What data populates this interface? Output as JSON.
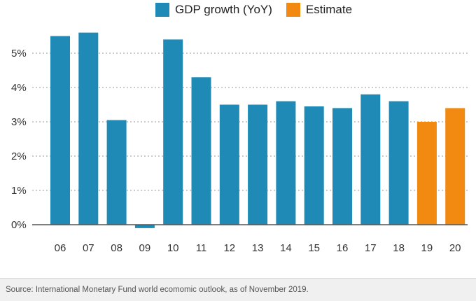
{
  "chart_data": {
    "type": "bar",
    "title": "",
    "xlabel": "",
    "ylabel": "",
    "categories": [
      "06",
      "07",
      "08",
      "09",
      "10",
      "11",
      "12",
      "13",
      "14",
      "15",
      "16",
      "17",
      "18",
      "19",
      "20"
    ],
    "series": [
      {
        "name": "GDP growth (YoY)",
        "color": "#1f8ab5",
        "values": [
          5.5,
          5.6,
          3.05,
          -0.1,
          5.4,
          4.3,
          3.5,
          3.5,
          3.6,
          3.45,
          3.4,
          3.8,
          3.6,
          null,
          null
        ]
      },
      {
        "name": "Estimate",
        "color": "#f28a12",
        "values": [
          null,
          null,
          null,
          null,
          null,
          null,
          null,
          null,
          null,
          null,
          null,
          null,
          null,
          3.0,
          3.4
        ]
      }
    ],
    "ylim": [
      -0.1,
      5.6
    ],
    "yticks": [
      0,
      1,
      2,
      3,
      4,
      5
    ],
    "ytick_labels": [
      "0%",
      "1%",
      "2%",
      "3%",
      "4%",
      "5%"
    ],
    "grid": true,
    "legend_position": "top"
  },
  "legend": {
    "items": [
      {
        "label": "GDP growth (YoY)",
        "color": "#1f8ab5"
      },
      {
        "label": "Estimate",
        "color": "#f28a12"
      }
    ]
  },
  "footer": {
    "source": "Source: International Monetary Fund world ecomomic outlook, as of November 2019."
  }
}
